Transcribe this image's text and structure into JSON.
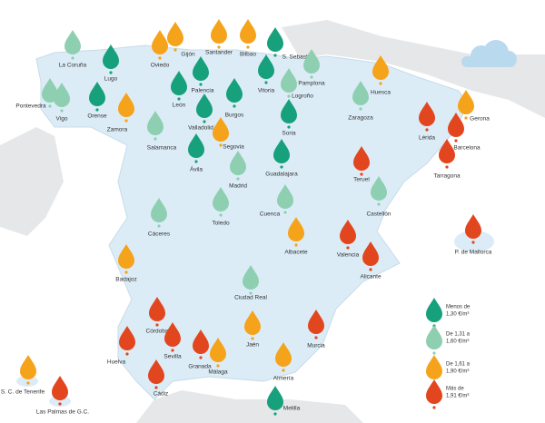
{
  "map": {
    "cities": [
      {
        "name": "La Coruña",
        "color": "#8fcfb1"
      },
      {
        "name": "Lugo",
        "color": "#17a07c"
      },
      {
        "name": "Pontevedra",
        "color": "#8fcfb1"
      },
      {
        "name": "Vigo",
        "color": "#8fcfb1"
      },
      {
        "name": "Orense",
        "color": "#17a07c"
      },
      {
        "name": "Zamora",
        "color": "#f5a31a"
      },
      {
        "name": "Oviedo",
        "color": "#f5a31a"
      },
      {
        "name": "Gijón",
        "color": "#f5a31a"
      },
      {
        "name": "Santander",
        "color": "#f5a31a"
      },
      {
        "name": "Bilbao",
        "color": "#f5a31a"
      },
      {
        "name": "S. Sebastián",
        "color": "#17a07c"
      },
      {
        "name": "Pamplona",
        "color": "#8fcfb1"
      },
      {
        "name": "Vitoria",
        "color": "#17a07c"
      },
      {
        "name": "Logroño",
        "color": "#8fcfb1"
      },
      {
        "name": "Palencia",
        "color": "#17a07c"
      },
      {
        "name": "León",
        "color": "#17a07c"
      },
      {
        "name": "Burgos",
        "color": "#17a07c"
      },
      {
        "name": "Valladolid",
        "color": "#17a07c"
      },
      {
        "name": "Soria",
        "color": "#17a07c"
      },
      {
        "name": "Salamanca",
        "color": "#8fcfb1"
      },
      {
        "name": "Segovia",
        "color": "#f5a31a"
      },
      {
        "name": "Ávila",
        "color": "#17a07c"
      },
      {
        "name": "Madrid",
        "color": "#8fcfb1"
      },
      {
        "name": "Guadalajara",
        "color": "#17a07c"
      },
      {
        "name": "Huesca",
        "color": "#f5a31a"
      },
      {
        "name": "Zaragoza",
        "color": "#8fcfb1"
      },
      {
        "name": "Lérida",
        "color": "#e2461f"
      },
      {
        "name": "Gerona",
        "color": "#f5a31a"
      },
      {
        "name": "Barcelona",
        "color": "#e2461f"
      },
      {
        "name": "Tarragona",
        "color": "#e2461f"
      },
      {
        "name": "Teruel",
        "color": "#e2461f"
      },
      {
        "name": "Castellón",
        "color": "#8fcfb1"
      },
      {
        "name": "Toledo",
        "color": "#8fcfb1"
      },
      {
        "name": "Cuenca",
        "color": "#8fcfb1"
      },
      {
        "name": "Cáceres",
        "color": "#8fcfb1"
      },
      {
        "name": "Albacete",
        "color": "#f5a31a"
      },
      {
        "name": "Valencia",
        "color": "#e2461f"
      },
      {
        "name": "Alicante",
        "color": "#e2461f"
      },
      {
        "name": "P. de Mallorca",
        "color": "#e2461f"
      },
      {
        "name": "Badajoz",
        "color": "#f5a31a"
      },
      {
        "name": "Ciudad Real",
        "color": "#8fcfb1"
      },
      {
        "name": "Córdoba",
        "color": "#e2461f"
      },
      {
        "name": "Sevilla",
        "color": "#e2461f"
      },
      {
        "name": "Huelva",
        "color": "#e2461f"
      },
      {
        "name": "Granada",
        "color": "#e2461f"
      },
      {
        "name": "Málaga",
        "color": "#f5a31a"
      },
      {
        "name": "Jaén",
        "color": "#f5a31a"
      },
      {
        "name": "Murcia",
        "color": "#e2461f"
      },
      {
        "name": "Almería",
        "color": "#f5a31a"
      },
      {
        "name": "Cádiz",
        "color": "#e2461f"
      },
      {
        "name": "Melilla",
        "color": "#17a07c"
      },
      {
        "name": "S. C. de Tenerife",
        "color": "#f5a31a"
      },
      {
        "name": "Las Palmas de G.C.",
        "color": "#e2461f"
      }
    ],
    "legend": [
      {
        "lines": [
          "Menos de",
          "1,30 €/m³"
        ],
        "color": "#17a07c"
      },
      {
        "lines": [
          "De 1,31 a",
          "1,60 €/m³"
        ],
        "color": "#8fcfb1"
      },
      {
        "lines": [
          "De 1,61 a",
          "1,90 €/m³"
        ],
        "color": "#f5a31a"
      },
      {
        "lines": [
          "Más de",
          "1,91 €/m³"
        ],
        "color": "#e2461f"
      }
    ]
  }
}
